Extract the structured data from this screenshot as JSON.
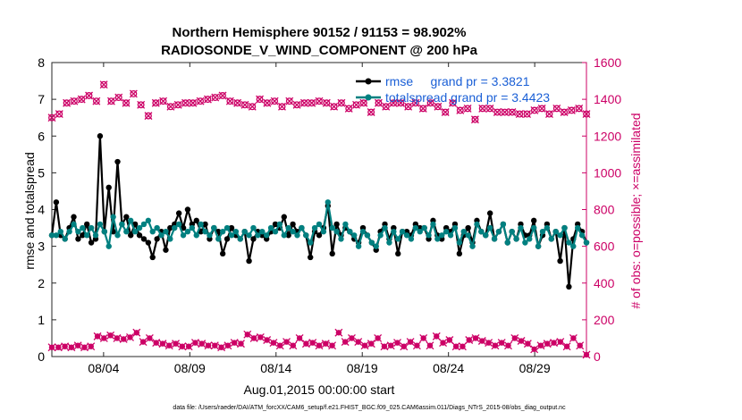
{
  "chart_data": {
    "type": "line",
    "title_line1": "Northern Hemisphere 90152 / 91153 = 98.902%",
    "title_line2": "RADIOSONDE_V_WIND_COMPONENT @ 200 hPa",
    "xlabel": "Aug.01,2015 00:00:00 start",
    "ylabel_left": "rmse and totalspread",
    "ylabel_right": "# of obs: o=possible; ×=assimilated",
    "xlim": [
      1.0,
      32.0
    ],
    "ylim_left": [
      0,
      8
    ],
    "ylim_right": [
      0,
      1600
    ],
    "x_tick_values": [
      4,
      9,
      14,
      19,
      24,
      29
    ],
    "x_tick_labels": [
      "08/04",
      "08/09",
      "08/14",
      "08/19",
      "08/24",
      "08/29"
    ],
    "y_left_ticks": [
      "0",
      "1",
      "2",
      "3",
      "4",
      "5",
      "6",
      "7",
      "8"
    ],
    "y_right_ticks": [
      "0",
      "200",
      "400",
      "600",
      "800",
      "1000",
      "1200",
      "1400",
      "1600"
    ],
    "legend": {
      "rmse": "rmse     grand pr = 3.3821",
      "spread": "totalspread grand pr = 3.4423"
    },
    "colors": {
      "rmse": "#000000",
      "spread": "#008080",
      "obs": "#cc0066",
      "legend_text": "#1a5fd6"
    },
    "series": [
      {
        "name": "rmse",
        "axis": "left",
        "values": [
          3.3,
          4.2,
          3.3,
          3.2,
          3.5,
          3.8,
          3.2,
          3.3,
          3.6,
          3.1,
          3.2,
          6.0,
          3.4,
          4.6,
          3.4,
          5.3,
          3.6,
          3.8,
          3.3,
          3.6,
          3.3,
          3.2,
          3.1,
          2.7,
          3.2,
          3.4,
          2.9,
          3.5,
          3.6,
          3.9,
          3.5,
          4.0,
          3.6,
          3.7,
          3.4,
          3.6,
          3.2,
          3.5,
          3.4,
          2.8,
          3.2,
          3.5,
          3.3,
          3.2,
          3.4,
          2.6,
          3.2,
          3.4,
          3.3,
          3.2,
          3.4,
          3.6,
          3.5,
          3.8,
          3.3,
          3.6,
          3.4,
          3.5,
          3.3,
          2.7,
          3.4,
          3.3,
          3.5,
          4.1,
          2.8,
          3.6,
          3.3,
          3.5,
          3.4,
          3.2,
          3.1,
          3.5,
          3.3,
          3.1,
          2.9,
          3.4,
          3.6,
          3.2,
          3.5,
          2.8,
          3.4,
          3.4,
          3.3,
          3.6,
          3.5,
          3.5,
          3.2,
          3.7,
          3.3,
          3.2,
          3.5,
          3.4,
          3.6,
          2.8,
          3.3,
          3.5,
          3.1,
          3.7,
          3.4,
          3.3,
          3.9,
          3.2,
          3.4,
          3.6,
          3.1,
          3.4,
          3.2,
          3.6,
          3.3,
          3.3,
          3.7,
          3.0,
          3.3,
          3.6,
          3.2,
          3.4,
          2.6,
          3.5,
          1.9,
          3.2,
          3.6,
          3.4,
          3.1
        ]
      },
      {
        "name": "totalspread",
        "axis": "left",
        "values": [
          3.3,
          3.3,
          3.4,
          3.2,
          3.4,
          3.6,
          3.4,
          3.5,
          3.3,
          3.5,
          3.3,
          3.6,
          3.4,
          3.0,
          3.8,
          3.3,
          3.6,
          3.4,
          3.7,
          3.4,
          3.5,
          3.6,
          3.7,
          3.4,
          3.5,
          3.3,
          3.4,
          3.2,
          3.5,
          3.6,
          3.3,
          3.4,
          3.5,
          3.3,
          3.6,
          3.4,
          3.3,
          3.5,
          3.2,
          3.4,
          3.5,
          3.3,
          3.4,
          3.2,
          3.4,
          3.3,
          3.5,
          3.3,
          3.4,
          3.3,
          3.5,
          3.4,
          3.6,
          3.3,
          3.5,
          3.4,
          3.3,
          3.5,
          3.3,
          3.1,
          3.5,
          3.6,
          3.4,
          4.2,
          3.5,
          3.4,
          3.2,
          3.6,
          3.4,
          3.3,
          3.0,
          3.4,
          3.3,
          3.1,
          3.0,
          3.3,
          3.5,
          3.1,
          3.4,
          3.2,
          3.4,
          3.3,
          3.2,
          3.5,
          3.4,
          3.5,
          3.3,
          3.6,
          3.2,
          3.3,
          3.4,
          3.3,
          3.5,
          3.1,
          3.4,
          3.3,
          3.0,
          3.6,
          3.4,
          3.3,
          3.5,
          3.2,
          3.4,
          3.6,
          3.1,
          3.4,
          3.2,
          3.5,
          3.1,
          3.2,
          3.5,
          3.0,
          3.4,
          3.5,
          3.2,
          3.4,
          3.3,
          3.5,
          3.1,
          3.0,
          3.5,
          3.3,
          3.1
        ]
      },
      {
        "name": "obs_possible",
        "axis": "right",
        "values": [
          1300,
          1320,
          1380,
          1390,
          1400,
          1420,
          1390,
          1480,
          1390,
          1410,
          1380,
          1430,
          1370,
          1310,
          1380,
          1390,
          1360,
          1370,
          1380,
          1380,
          1390,
          1400,
          1410,
          1420,
          1390,
          1380,
          1370,
          1360,
          1400,
          1380,
          1390,
          1360,
          1390,
          1370,
          1380,
          1380,
          1390,
          1380,
          1360,
          1380,
          1350,
          1370,
          1380,
          1330,
          1380,
          1360,
          1380,
          1380,
          1360,
          1380,
          1350,
          1380,
          1360,
          1330,
          1380,
          1340,
          1350,
          1290,
          1350,
          1350,
          1330,
          1330,
          1330,
          1320,
          1320,
          1340,
          1350,
          1320,
          1350,
          1330,
          1340,
          1350,
          1320
        ]
      },
      {
        "name": "obs_assimilated",
        "axis": "right",
        "values": [
          50,
          50,
          55,
          50,
          60,
          50,
          55,
          110,
          100,
          115,
          100,
          95,
          105,
          130,
          80,
          100,
          75,
          70,
          60,
          70,
          55,
          55,
          75,
          70,
          60,
          60,
          50,
          60,
          75,
          70,
          120,
          100,
          105,
          90,
          75,
          60,
          80,
          60,
          100,
          70,
          75,
          60,
          70,
          60,
          130,
          80,
          100,
          80,
          60,
          70,
          100,
          55,
          60,
          75,
          55,
          80,
          60,
          100,
          60,
          110,
          75,
          90,
          55,
          55,
          90,
          100,
          85,
          75,
          60,
          75,
          60,
          100,
          85,
          70,
          40,
          60,
          70,
          75,
          80,
          55,
          100,
          60,
          10
        ]
      }
    ]
  },
  "footer": "data file: /Users/raeder/DAI/ATM_forcXX/CAM6_setup/f.e21.FHIST_BGC.f09_025.CAM6assim.011/Diags_NTrS_2015-08/obs_diag_output.nc"
}
